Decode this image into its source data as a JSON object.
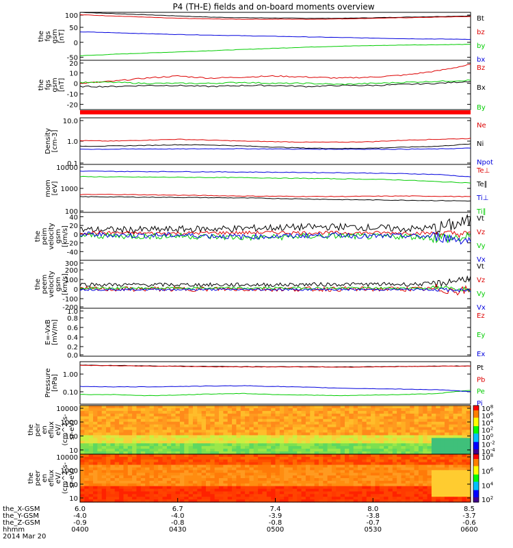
{
  "page": {
    "title": "P4 (TH-E) fields and on-board moments overview"
  },
  "colors": {
    "black": "#000000",
    "red": "#dd0000",
    "blue": "#0000dd",
    "green": "#00cc00"
  },
  "chart_data": [
    {
      "id": "fgs_gsm_b",
      "type": "line",
      "ylabel": [
        "the",
        "fgs",
        "gsm",
        "[nT]"
      ],
      "ylim": [
        -60,
        100
      ],
      "yticks": [
        "100",
        "50",
        "0",
        "-50"
      ],
      "series": [
        {
          "name": "Bt",
          "color": "black",
          "y": [
            100,
            96,
            92,
            88,
            84,
            82,
            81,
            80,
            80,
            82,
            84,
            86,
            88
          ]
        },
        {
          "name": "bz",
          "color": "red",
          "y": [
            92,
            88,
            84,
            80,
            78,
            77,
            77,
            77,
            78,
            80,
            82,
            84,
            86
          ]
        },
        {
          "name": "by",
          "color": "green",
          "y": [
            -45,
            -40,
            -36,
            -32,
            -28,
            -24,
            -20,
            -16,
            -13,
            -11,
            -9,
            -8,
            -7
          ]
        },
        {
          "name": "bx",
          "color": "blue",
          "y": [
            35,
            32,
            29,
            26,
            24,
            22,
            20,
            18,
            16,
            14,
            12,
            11,
            10
          ]
        }
      ]
    },
    {
      "id": "fgs_gsm_dec",
      "type": "line",
      "ylabel": [
        "the",
        "fgs",
        "gsm",
        "[nT]"
      ],
      "ylim": [
        -25,
        22
      ],
      "yticks": [
        "20",
        "10",
        "0",
        "-10",
        "-20"
      ],
      "series": [
        {
          "name": "Bz",
          "color": "red",
          "y": [
            0,
            2,
            5,
            7,
            5,
            6,
            7,
            6,
            5,
            6,
            8,
            12,
            18
          ]
        },
        {
          "name": "Bx",
          "color": "black",
          "y": [
            -3,
            -3,
            -2,
            -2,
            -3,
            -2,
            -2,
            -3,
            -2,
            -2,
            -1,
            0,
            2
          ]
        },
        {
          "name": "By",
          "color": "green",
          "y": [
            1,
            1,
            0,
            0,
            0,
            1,
            0,
            0,
            -1,
            0,
            1,
            2,
            3
          ]
        }
      ]
    },
    {
      "id": "density",
      "type": "line",
      "scale": "log",
      "ylabel": [
        "Density",
        "[cm-3]"
      ],
      "ylim": [
        0.1,
        10
      ],
      "yticks": [
        "10.0",
        "1.0",
        "0.1"
      ],
      "series": [
        {
          "name": "Ne",
          "color": "red",
          "y": [
            1.05,
            1.0,
            1.1,
            1.2,
            1.1,
            1.0,
            0.95,
            0.9,
            0.9,
            0.95,
            1.1,
            1.2,
            1.3
          ]
        },
        {
          "name": "Ni",
          "color": "black",
          "y": [
            0.6,
            0.62,
            0.65,
            0.7,
            0.68,
            0.62,
            0.55,
            0.5,
            0.48,
            0.5,
            0.55,
            0.6,
            0.75
          ]
        },
        {
          "name": "Npot",
          "color": "blue",
          "y": [
            0.45,
            0.45,
            0.46,
            0.46,
            0.47,
            0.47,
            0.46,
            0.45,
            0.45,
            0.45,
            0.45,
            0.46,
            0.5
          ]
        }
      ]
    },
    {
      "id": "temperature",
      "type": "line",
      "scale": "log",
      "ylabel": [
        "mom",
        "[eV]"
      ],
      "ylim": [
        100,
        10000
      ],
      "yticks": [
        "10000",
        "1000",
        "100"
      ],
      "series": [
        {
          "name": "Te⊥",
          "color": "red",
          "y": [
            550,
            560,
            540,
            520,
            500,
            480,
            470,
            460,
            460,
            470,
            480,
            470,
            450
          ]
        },
        {
          "name": "Te∥",
          "color": "black",
          "y": [
            450,
            440,
            430,
            420,
            410,
            400,
            380,
            360,
            340,
            330,
            320,
            310,
            300
          ]
        },
        {
          "name": "Ti⊥",
          "color": "blue",
          "y": [
            5200,
            5100,
            5000,
            5000,
            4900,
            4800,
            4700,
            4600,
            4500,
            4300,
            4100,
            3800,
            3000
          ]
        },
        {
          "name": "Ti∥",
          "color": "green",
          "y": [
            3100,
            3000,
            2950,
            2900,
            2850,
            2800,
            2700,
            2600,
            2500,
            2400,
            2200,
            1900,
            1700
          ]
        }
      ]
    },
    {
      "id": "peim_velocity",
      "type": "line",
      "noisy": true,
      "ylabel": [
        "the",
        "peim",
        "velocity",
        "gsm",
        "[km/s]"
      ],
      "ylim": [
        -60,
        50
      ],
      "yticks": [
        "40",
        "20",
        "0",
        "-20",
        "-40"
      ],
      "series": [
        {
          "name": "Vt",
          "color": "black",
          "y": [
            10,
            10,
            10,
            11,
            12,
            13,
            15,
            16,
            17,
            15,
            12,
            14,
            30
          ],
          "amp": 8
        },
        {
          "name": "Vz",
          "color": "red",
          "y": [
            3,
            3,
            2,
            2,
            3,
            3,
            4,
            3,
            3,
            3,
            3,
            2,
            0
          ],
          "amp": 4
        },
        {
          "name": "Vy",
          "color": "green",
          "y": [
            -3,
            -4,
            -5,
            -4,
            -6,
            -8,
            -7,
            -5,
            -4,
            -6,
            -5,
            -8,
            -10
          ],
          "amp": 7
        },
        {
          "name": "Vx",
          "color": "blue",
          "y": [
            0,
            -2,
            -3,
            -2,
            -4,
            -6,
            -5,
            -3,
            -2,
            -5,
            -4,
            -6,
            -15
          ],
          "amp": 6
        }
      ]
    },
    {
      "id": "peem_velocity",
      "type": "line",
      "noisy": true,
      "ylabel": [
        "the",
        "peem",
        "velocity",
        "gsm",
        "[km/s]"
      ],
      "ylim": [
        -200,
        300
      ],
      "yticks": [
        "300",
        "200",
        "100",
        "0",
        "-100",
        "-200"
      ],
      "series": [
        {
          "name": "Vt",
          "color": "black",
          "y": [
            50,
            45,
            45,
            45,
            45,
            45,
            45,
            48,
            50,
            50,
            50,
            55,
            120
          ],
          "amp": 20
        },
        {
          "name": "Vz",
          "color": "red",
          "y": [
            0,
            0,
            0,
            0,
            0,
            0,
            0,
            0,
            0,
            0,
            0,
            0,
            -20
          ],
          "amp": 25
        },
        {
          "name": "Vy",
          "color": "green",
          "y": [
            10,
            10,
            10,
            10,
            10,
            10,
            10,
            10,
            10,
            10,
            10,
            10,
            0
          ],
          "amp": 12
        },
        {
          "name": "Vx",
          "color": "blue",
          "y": [
            -5,
            -5,
            -5,
            -5,
            -5,
            -5,
            -5,
            -5,
            -5,
            -5,
            -5,
            -5,
            -20
          ],
          "amp": 10
        }
      ]
    },
    {
      "id": "e_field",
      "type": "line",
      "ylabel": [
        "E=-VxB",
        "[mV/m]"
      ],
      "ylim": [
        0,
        1
      ],
      "yticks": [
        "1.0",
        "0.8",
        "0.6",
        "0.4",
        "0.2",
        "0.0"
      ],
      "series": [
        {
          "name": "Ez",
          "color": "red",
          "y": []
        },
        {
          "name": "Ey",
          "color": "green",
          "y": []
        },
        {
          "name": "Ex",
          "color": "blue",
          "y": []
        }
      ]
    },
    {
      "id": "pressure",
      "type": "line",
      "scale": "log",
      "ylabel": [
        "Pressure",
        "[nPa]"
      ],
      "ylim": [
        0.02,
        5
      ],
      "yticks": [
        "1.00",
        "0.10"
      ],
      "series": [
        {
          "name": "Pt",
          "color": "black",
          "y": [
            3.2,
            3.1,
            2.9,
            2.8,
            2.7,
            2.6,
            2.6,
            2.6,
            2.5,
            2.6,
            2.7,
            2.8,
            2.9
          ]
        },
        {
          "name": "Pb",
          "color": "red",
          "y": [
            3.1,
            3.0,
            2.8,
            2.7,
            2.6,
            2.55,
            2.55,
            2.55,
            2.45,
            2.55,
            2.65,
            2.75,
            2.85
          ]
        },
        {
          "name": "Pe",
          "color": "green",
          "y": [
            0.07,
            0.07,
            0.06,
            0.065,
            0.075,
            0.08,
            0.07,
            0.065,
            0.06,
            0.065,
            0.07,
            0.08,
            0.12
          ]
        },
        {
          "name": "Pi",
          "color": "blue",
          "y": [
            0.2,
            0.19,
            0.19,
            0.2,
            0.21,
            0.22,
            0.2,
            0.18,
            0.16,
            0.15,
            0.14,
            0.13,
            0.1
          ]
        }
      ]
    },
    {
      "id": "peir_spectrogram",
      "type": "heatmap",
      "scale": "log",
      "ylabel": [
        "the",
        "peir",
        "en",
        "eflux",
        "eV/",
        "(cm^2-s-",
        "sr-eV)"
      ],
      "ylim": [
        5,
        15000
      ],
      "yticks": [
        "10000",
        "1000",
        "100",
        "10"
      ],
      "colorbar": {
        "ticks": [
          "10^8",
          "10^6",
          "10^4",
          "10^2",
          "10^0",
          "10^-2",
          "10^-4"
        ]
      }
    },
    {
      "id": "peer_spectrogram",
      "type": "heatmap",
      "scale": "log",
      "ylabel": [
        "the",
        "peer",
        "en",
        "eflux",
        "eV/",
        "(cm^2-s-",
        "sr-eV)"
      ],
      "ylim": [
        5,
        15000
      ],
      "yticks": [
        "10000",
        "1000",
        "100",
        "10"
      ],
      "colorbar": {
        "ticks": [
          "10^8",
          "10^6",
          "10^4",
          "10^2"
        ]
      }
    }
  ],
  "x_axis": {
    "range": [
      "0400",
      "0600"
    ],
    "rows": [
      {
        "label": "the_X-GSM",
        "values": [
          "6.0",
          "6.7",
          "7.4",
          "8.0",
          "8.5"
        ]
      },
      {
        "label": "the_Y-GSM",
        "values": [
          "-4.0",
          "-4.0",
          "-3.9",
          "-3.8",
          "-3.7"
        ]
      },
      {
        "label": "the_Z-GSM",
        "values": [
          "-0.9",
          "-0.8",
          "-0.8",
          "-0.7",
          "-0.6"
        ]
      },
      {
        "label": "hhmm",
        "values": [
          "0400",
          "0430",
          "0500",
          "0530",
          "0600"
        ]
      }
    ],
    "date": "2014 Mar 20"
  }
}
